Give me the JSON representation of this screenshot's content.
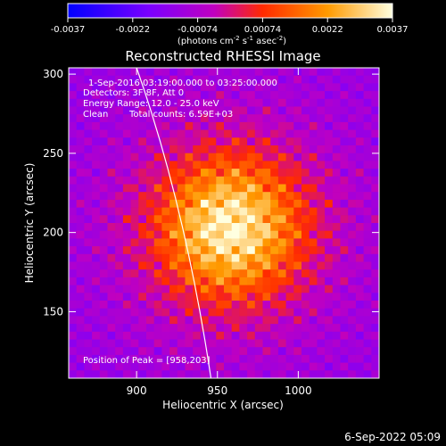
{
  "chart_data": {
    "type": "heatmap",
    "title": "Reconstructed RHESSI Image",
    "xlabel": "Heliocentric X (arcsec)",
    "ylabel": "Heliocentric Y (arcsec)",
    "xlim": [
      858,
      1050
    ],
    "ylim": [
      108,
      304
    ],
    "x_ticks": [
      900,
      950,
      1000
    ],
    "y_ticks": [
      150,
      200,
      250,
      300
    ],
    "colorbar": {
      "ticks": [
        "-0.0037",
        "-0.0022",
        "-0.00074",
        "0.00074",
        "0.0022",
        "0.0037"
      ],
      "min": -0.0037,
      "max": 0.0037,
      "label_parts": [
        "(photons cm",
        "-2",
        " s",
        "-1",
        " asec",
        "-2",
        ")"
      ]
    },
    "annotations": [
      "1-Sep-2016 03:19:00.000 to 03:25:00.000",
      "Detectors: 3F 8F, Att 0",
      "Energy Range: 12.0 - 25.0 keV",
      "Clean",
      "Total counts: 6.59E+03"
    ],
    "peak_label": "Position of Peak = [958,203]",
    "peak": [
      958,
      203
    ],
    "limb_curve": [
      [
        900,
        304
      ],
      [
        930,
        217
      ],
      [
        946,
        108
      ]
    ],
    "grid": false
  },
  "footer": {
    "date": "6-Sep-2022 05:09"
  }
}
